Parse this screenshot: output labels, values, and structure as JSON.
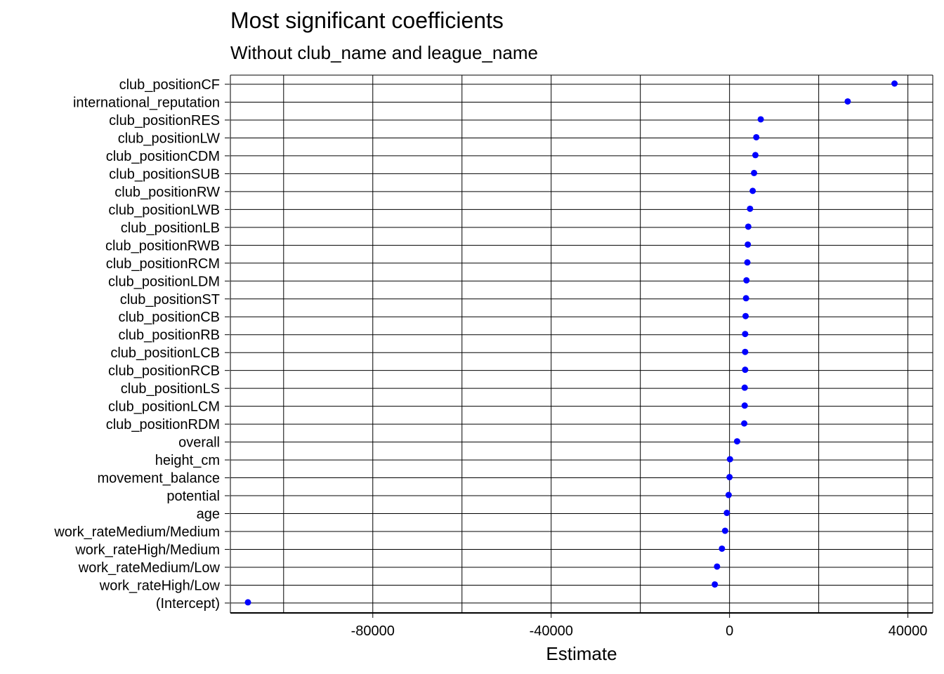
{
  "chart_data": {
    "type": "scatter",
    "title": "Most significant coefficients",
    "subtitle": "Without club_name and league_name",
    "xlabel": "Estimate",
    "ylabel": "",
    "xlim": [
      -108000,
      44000
    ],
    "xticks": [
      -80000,
      -40000,
      0,
      40000
    ],
    "xtick_labels": [
      "-80000",
      "-40000",
      "0",
      "40000"
    ],
    "x_minor_grid": [
      -100000,
      -60000,
      -20000,
      20000
    ],
    "grid": true,
    "point_color": "#0000FF",
    "categories": [
      "club_positionCF",
      "international_reputation",
      "club_positionRES",
      "club_positionLW",
      "club_positionCDM",
      "club_positionSUB",
      "club_positionRW",
      "club_positionLWB",
      "club_positionLB",
      "club_positionRWB",
      "club_positionRCM",
      "club_positionLDM",
      "club_positionST",
      "club_positionCB",
      "club_positionRB",
      "club_positionLCB",
      "club_positionRCB",
      "club_positionLS",
      "club_positionLCM",
      "club_positionRDM",
      "overall",
      "height_cm",
      "movement_balance",
      "potential",
      "age",
      "work_rateMedium/Medium",
      "work_rateHigh/Medium",
      "work_rateMedium/Low",
      "work_rateHigh/Low",
      "(Intercept)"
    ],
    "values": [
      37000,
      26500,
      7000,
      6000,
      5800,
      5500,
      5200,
      4600,
      4200,
      4100,
      4000,
      3800,
      3700,
      3600,
      3500,
      3500,
      3500,
      3400,
      3400,
      3300,
      1700,
      100,
      0,
      -200,
      -600,
      -1000,
      -1700,
      -2800,
      -3300,
      -108000
    ]
  }
}
